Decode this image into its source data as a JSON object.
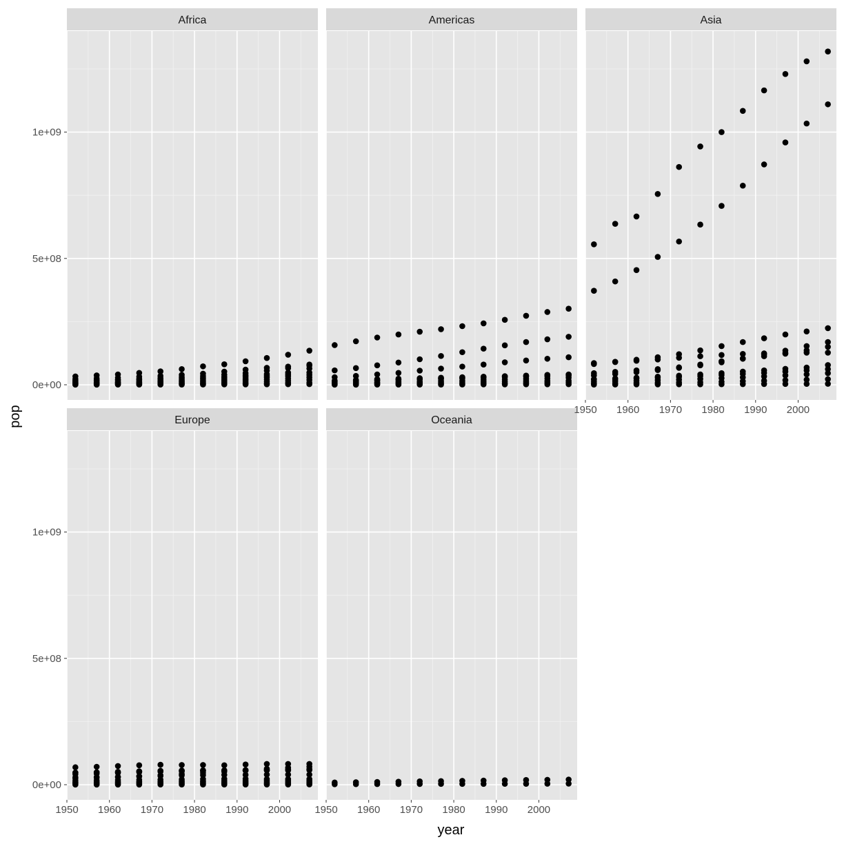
{
  "chart_data": {
    "type": "scatter",
    "facet_by": "continent",
    "xlabel": "year",
    "ylabel": "pop",
    "xlim": [
      1950,
      2009
    ],
    "ylim": [
      -60000000,
      1400000000
    ],
    "x_ticks": [
      1950,
      1960,
      1970,
      1980,
      1990,
      2000
    ],
    "y_ticks": [
      0,
      500000000,
      1000000000
    ],
    "y_tick_labels": [
      "0e+00",
      "5e+08",
      "1e+09"
    ],
    "grid": true,
    "point_color": "#000000",
    "panel_bg": "#e5e5e5",
    "strip_bg": "#d9d9d9",
    "years": [
      1952,
      1957,
      1962,
      1967,
      1972,
      1977,
      1982,
      1987,
      1992,
      1997,
      2002,
      2007
    ],
    "facets": [
      {
        "label": "Africa",
        "series": [
          {
            "values": [
              33000000,
              37000000,
              41000000,
              47000000,
              53000000,
              62000000,
              73000000,
              81000000,
              93000000,
              106000000,
              119000000,
              135000000
            ]
          },
          {
            "values": [
              22000000,
              25000000,
              28000000,
              32000000,
              35000000,
              39000000,
              44000000,
              52000000,
              60000000,
              67000000,
              72000000,
              80000000
            ]
          },
          {
            "values": [
              16000000,
              18000000,
              20000000,
              23000000,
              26000000,
              30000000,
              34000000,
              40000000,
              46000000,
              56000000,
              66000000,
              76000000
            ]
          },
          {
            "values": [
              14000000,
              16000000,
              18000000,
              20000000,
              22000000,
              25000000,
              28000000,
              32000000,
              37000000,
              42000000,
              48000000,
              64000000
            ]
          },
          {
            "values": [
              9000000,
              10000000,
              12000000,
              14000000,
              16000000,
              19000000,
              23000000,
              27000000,
              31000000,
              36000000,
              41000000,
              48000000
            ]
          },
          {
            "values": [
              7000000,
              8000000,
              9000000,
              10000000,
              12000000,
              14000000,
              17000000,
              20000000,
              24000000,
              29000000,
              34000000,
              39000000
            ]
          },
          {
            "values": [
              5000000,
              6000000,
              7000000,
              8000000,
              9000000,
              11000000,
              13000000,
              15000000,
              18000000,
              21000000,
              25000000,
              29000000
            ]
          },
          {
            "values": [
              3000000,
              3500000,
              4000000,
              4500000,
              5500000,
              6500000,
              8000000,
              9500000,
              11000000,
              13000000,
              16000000,
              19000000
            ]
          },
          {
            "values": [
              1500000,
              1700000,
              2000000,
              2300000,
              2700000,
              3100000,
              3700000,
              4300000,
              5000000,
              6000000,
              7000000,
              8000000
            ]
          },
          {
            "values": [
              500000,
              600000,
              700000,
              800000,
              900000,
              1000000,
              1200000,
              1400000,
              1600000,
              1900000,
              2200000,
              2500000
            ]
          }
        ]
      },
      {
        "label": "Americas",
        "series": [
          {
            "values": [
              157000000,
              172000000,
              187000000,
              199000000,
              210000000,
              220000000,
              232000000,
              243000000,
              257000000,
              273000000,
              288000000,
              301000000
            ]
          },
          {
            "values": [
              57000000,
              66000000,
              77000000,
              88000000,
              101000000,
              114000000,
              129000000,
              143000000,
              156000000,
              169000000,
              180000000,
              190000000
            ]
          },
          {
            "values": [
              30000000,
              35000000,
              41000000,
              47000000,
              56000000,
              64000000,
              72000000,
              80000000,
              89000000,
              96000000,
              103000000,
              109000000
            ]
          },
          {
            "values": [
              17000000,
              19000000,
              22000000,
              24000000,
              26000000,
              28000000,
              30000000,
              32000000,
              34000000,
              36000000,
              38000000,
              40000000
            ]
          },
          {
            "values": [
              14000000,
              16000000,
              18000000,
              20000000,
              22000000,
              24000000,
              26000000,
              28000000,
              30000000,
              32000000,
              34000000,
              36000000
            ]
          },
          {
            "values": [
              12000000,
              14000000,
              16000000,
              19000000,
              22000000,
              25000000,
              27000000,
              30000000,
              33000000,
              36000000,
              39000000,
              41000000
            ]
          },
          {
            "values": [
              8000000,
              9000000,
              10000000,
              12000000,
              13000000,
              15000000,
              17000000,
              19000000,
              21000000,
              23000000,
              25000000,
              28000000
            ]
          },
          {
            "values": [
              5000000,
              6000000,
              7000000,
              8000000,
              9000000,
              10000000,
              11000000,
              12000000,
              13000000,
              14000000,
              15000000,
              16000000
            ]
          },
          {
            "values": [
              2000000,
              2500000,
              3000000,
              3500000,
              4000000,
              4500000,
              5000000,
              5500000,
              6000000,
              7000000,
              8000000,
              9000000
            ]
          },
          {
            "values": [
              500000,
              600000,
              700000,
              800000,
              900000,
              1000000,
              1200000,
              1400000,
              1600000,
              1800000,
              2000000,
              2200000
            ]
          }
        ]
      },
      {
        "label": "Asia",
        "series": [
          {
            "values": [
              556000000,
              637000000,
              666000000,
              755000000,
              862000000,
              943000000,
              1000000000,
              1084000000,
              1165000000,
              1230000000,
              1280000000,
              1319000000
            ]
          },
          {
            "values": [
              372000000,
              409000000,
              454000000,
              506000000,
              567000000,
              634000000,
              708000000,
              788000000,
              872000000,
              959000000,
              1034000000,
              1110000000
            ]
          },
          {
            "values": [
              86000000,
              91000000,
              95000000,
              100000000,
              107000000,
              113000000,
              118000000,
              122000000,
              124000000,
              126000000,
              127000000,
              127000000
            ]
          },
          {
            "values": [
              82000000,
              90000000,
              99000000,
              109000000,
              121000000,
              136000000,
              153000000,
              169000000,
              184000000,
              199000000,
              211000000,
              224000000
            ]
          },
          {
            "values": [
              46000000,
              51000000,
              57000000,
              62000000,
              69000000,
              80000000,
              93000000,
              103000000,
              113000000,
              123000000,
              136000000,
              150000000
            ]
          },
          {
            "values": [
              37000000,
              43000000,
              50000000,
              58000000,
              67000000,
              77000000,
              89000000,
              104000000,
              120000000,
              135000000,
              153000000,
              169000000
            ]
          },
          {
            "values": [
              22000000,
              25000000,
              28000000,
              32000000,
              36000000,
              41000000,
              46000000,
              52000000,
              57000000,
              63000000,
              68000000,
              78000000
            ]
          },
          {
            "values": [
              20000000,
              22000000,
              25000000,
              28000000,
              31000000,
              35000000,
              39000000,
              43000000,
              47000000,
              52000000,
              57000000,
              62000000
            ]
          },
          {
            "values": [
              12000000,
              14000000,
              16000000,
              18000000,
              20000000,
              23000000,
              26000000,
              29000000,
              33000000,
              37000000,
              41000000,
              46000000
            ]
          },
          {
            "values": [
              5000000,
              6000000,
              7000000,
              8000000,
              9000000,
              10000000,
              12000000,
              14000000,
              16000000,
              18000000,
              20000000,
              22000000
            ]
          },
          {
            "values": [
              1000000,
              1200000,
              1400000,
              1600000,
              1800000,
              2000000,
              2300000,
              2600000,
              2900000,
              3200000,
              3500000,
              3800000
            ]
          }
        ]
      },
      {
        "label": "Europe",
        "series": [
          {
            "values": [
              69000000,
              71000000,
              74000000,
              77000000,
              79000000,
              78000000,
              78000000,
              77000000,
              80000000,
              82000000,
              82000000,
              82000000
            ]
          },
          {
            "values": [
              48000000,
              49000000,
              51000000,
              53000000,
              55000000,
              56000000,
              56000000,
              56000000,
              57000000,
              58000000,
              59000000,
              61000000
            ]
          },
          {
            "values": [
              47000000,
              49000000,
              50000000,
              52000000,
              54000000,
              56000000,
              57000000,
              57000000,
              57000000,
              57000000,
              57000000,
              58000000
            ]
          },
          {
            "values": [
              42000000,
              44000000,
              47000000,
              50000000,
              52000000,
              53000000,
              54000000,
              55000000,
              56000000,
              58000000,
              59000000,
              60000000
            ]
          },
          {
            "values": [
              29000000,
              30000000,
              31000000,
              33000000,
              35000000,
              37000000,
              38000000,
              39000000,
              39000000,
              40000000,
              40000000,
              40000000
            ]
          },
          {
            "values": [
              25000000,
              28000000,
              30000000,
              33000000,
              37000000,
              42000000,
              47000000,
              52000000,
              58000000,
              63000000,
              67000000,
              71000000
            ]
          },
          {
            "values": [
              16000000,
              17000000,
              18000000,
              19000000,
              20000000,
              21000000,
              22000000,
              23000000,
              23000000,
              22000000,
              22000000,
              22000000
            ]
          },
          {
            "values": [
              10000000,
              11000000,
              11500000,
              12000000,
              13000000,
              14000000,
              14000000,
              15000000,
              15000000,
              16000000,
              16000000,
              16000000
            ]
          },
          {
            "values": [
              7000000,
              7500000,
              8000000,
              8500000,
              9000000,
              9500000,
              9800000,
              10000000,
              10200000,
              10300000,
              10400000,
              10500000
            ]
          },
          {
            "values": [
              3000000,
              3200000,
              3400000,
              3600000,
              3900000,
              4100000,
              4300000,
              4500000,
              4700000,
              4900000,
              5100000,
              5300000
            ]
          },
          {
            "values": [
              500000,
              550000,
              600000,
              650000,
              700000,
              750000,
              800000,
              850000,
              900000,
              950000,
              1000000,
              1100000
            ]
          }
        ]
      },
      {
        "label": "Oceania",
        "series": [
          {
            "values": [
              8700000,
              9700000,
              10800000,
              11900000,
              13200000,
              14100000,
              15200000,
              16300000,
              17500000,
              18600000,
              19500000,
              20400000
            ]
          },
          {
            "values": [
              1990000,
              2140000,
              2490000,
              2730000,
              2930000,
              3160000,
              3210000,
              3320000,
              3440000,
              3680000,
              3910000,
              4120000
            ]
          }
        ]
      }
    ]
  }
}
